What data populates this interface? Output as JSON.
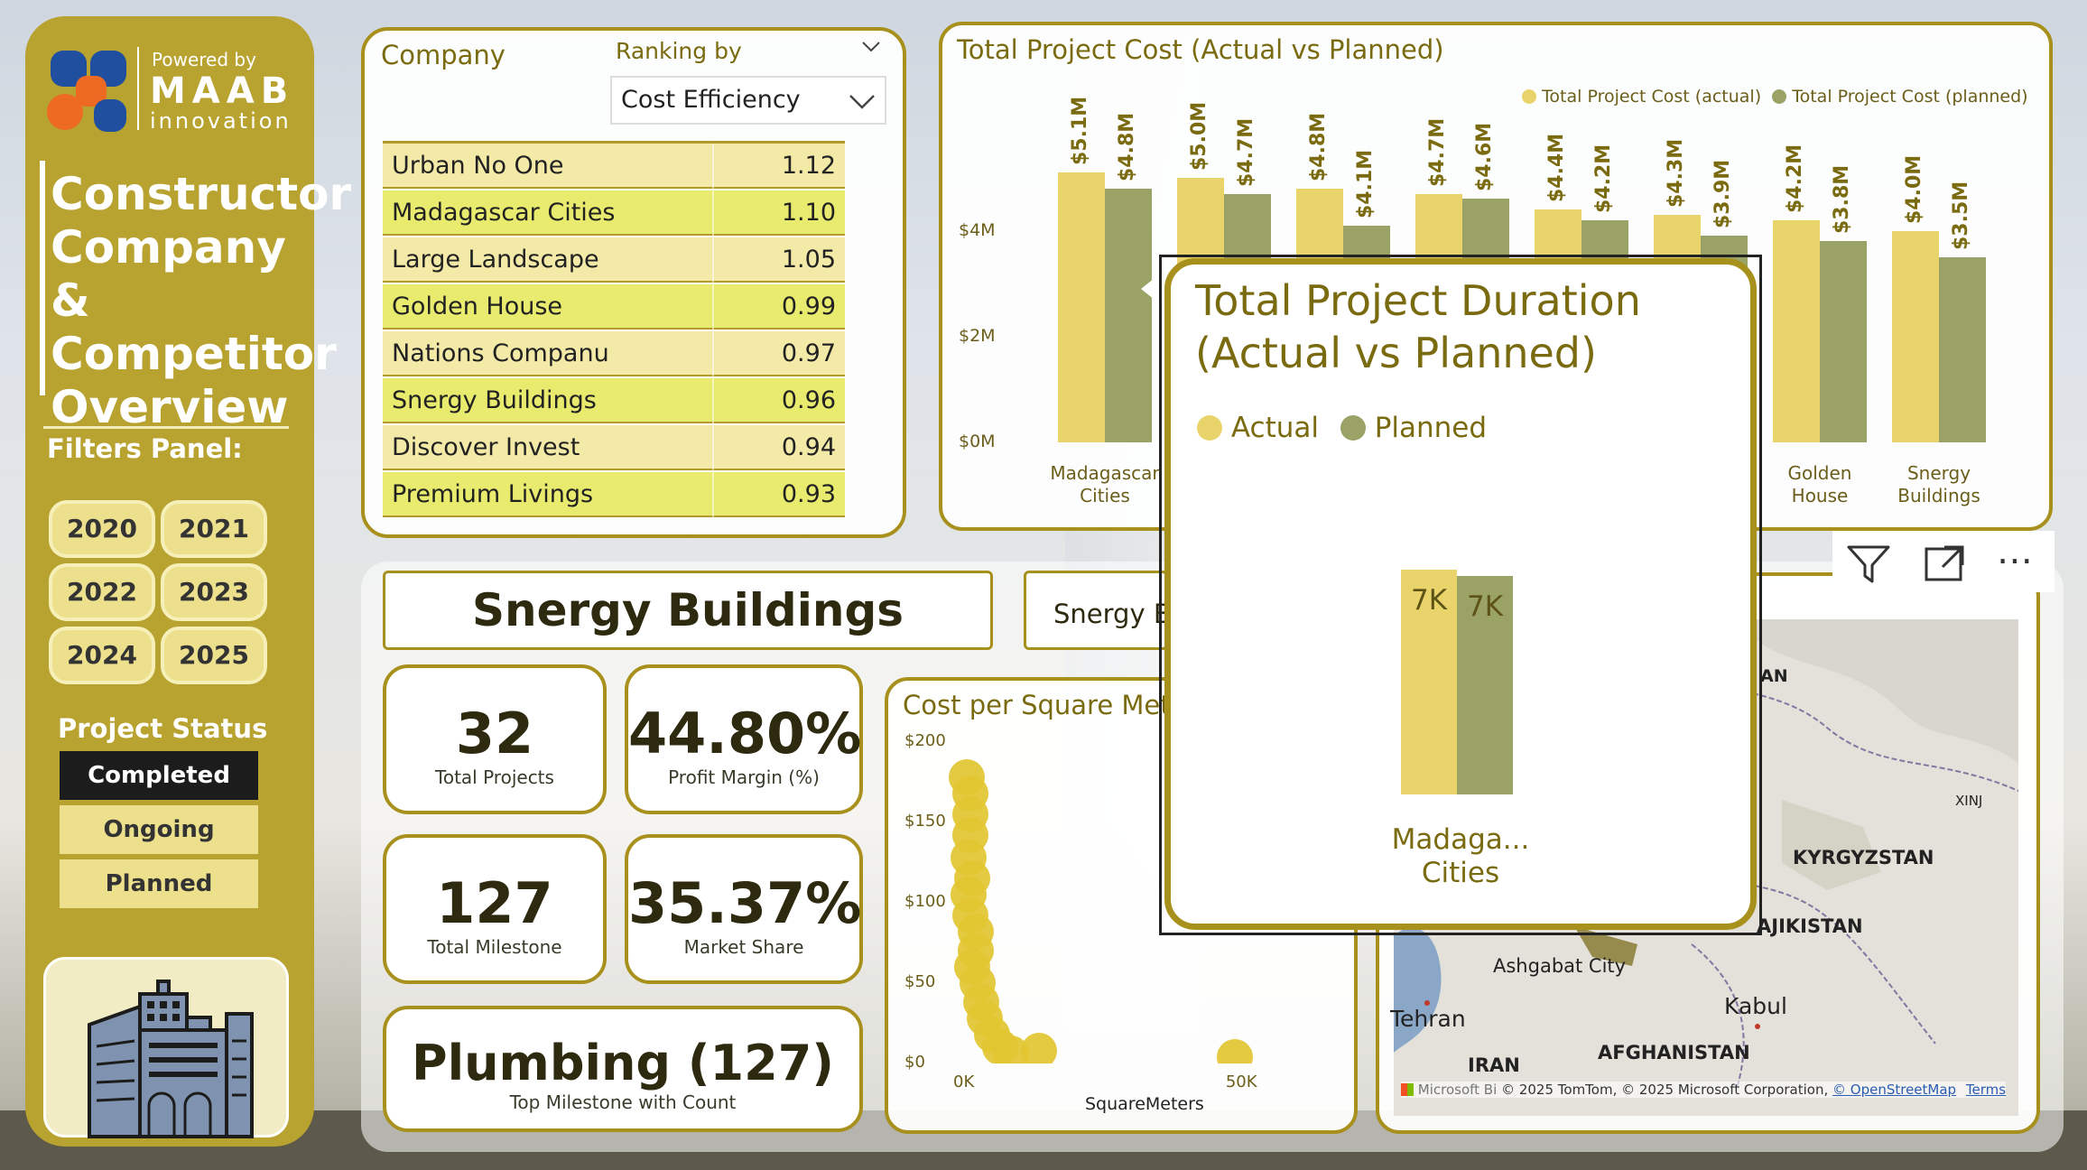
{
  "branding": {
    "powered_by": "Powered by",
    "brand_name": "MAAB",
    "brand_sub": "innovation"
  },
  "page_title": [
    "Constructor",
    "Company &",
    "Competitor",
    "Overview"
  ],
  "filters": {
    "label": "Filters Panel:",
    "years": [
      "2020",
      "2021",
      "2022",
      "2023",
      "2024",
      "2025"
    ],
    "status_label": "Project Status",
    "statuses": [
      {
        "label": "Completed",
        "selected": true
      },
      {
        "label": "Ongoing",
        "selected": false
      },
      {
        "label": "Planned",
        "selected": false
      }
    ]
  },
  "ranking": {
    "company_label": "Company",
    "ranking_by_label": "Ranking by",
    "ranking_by_value": "Cost Efficiency",
    "rows": [
      {
        "name": "Urban No One",
        "value": "1.12"
      },
      {
        "name": "Madagascar Cities",
        "value": "1.10"
      },
      {
        "name": "Large Landscape",
        "value": "1.05"
      },
      {
        "name": "Golden House",
        "value": "0.99"
      },
      {
        "name": "Nations Companu",
        "value": "0.97"
      },
      {
        "name": "Snergy Buildings",
        "value": "0.96"
      },
      {
        "name": "Discover Invest",
        "value": "0.94"
      },
      {
        "name": "Premium Livings",
        "value": "0.93"
      }
    ]
  },
  "selected_company": "Snergy Buildings",
  "company_dropdown_value": "Snergy B",
  "kpis": [
    {
      "value": "32",
      "label": "Total Projects"
    },
    {
      "value": "44.80%",
      "label": "Profit Margin (%)"
    },
    {
      "value": "127",
      "label": "Total Milestone"
    },
    {
      "value": "35.37%",
      "label": "Market Share"
    }
  ],
  "top_milestone": {
    "value": "Plumbing (127)",
    "label": "Top Milestone with Count"
  },
  "cost_chart": {
    "title": "Total Project Cost (Actual vs Planned)",
    "legend_actual": "Total Project Cost (actual)",
    "legend_planned": "Total Project Cost (planned)",
    "y_ticks": [
      "$4M",
      "$2M",
      "$0M"
    ],
    "visible_categories": [
      {
        "index": 0,
        "lines": [
          "Madagascar",
          "Cities"
        ]
      },
      {
        "index": 6,
        "lines": [
          "Golden",
          "House"
        ]
      },
      {
        "index": 7,
        "lines": [
          "Snergy",
          "Buildings"
        ]
      }
    ]
  },
  "duration_tooltip": {
    "title_line1": "Total Project Duration",
    "title_line2": "(Actual vs Planned)",
    "legend_actual": "Actual",
    "legend_planned": "Planned",
    "category_line1": "Madaga...",
    "category_line2": "Cities"
  },
  "scatter_chart": {
    "title": "Cost per Square Mete",
    "y_ticks": [
      "$200",
      "$150",
      "$100",
      "$50",
      "$0"
    ],
    "x_ticks": [
      "0K",
      "50K"
    ],
    "x_axis_label": "SquareMeters"
  },
  "map": {
    "labels": [
      "KYRGYZSTAN",
      "AJIKISTAN",
      "Ashgabat City",
      "Tehran",
      "Kabul",
      "IRAN",
      "AFGHANISTAN",
      "AN",
      "XINJ"
    ],
    "attribution_logo": "Microsoft Bi",
    "attribution": "© 2025 TomTom, © 2025 Microsoft Corporation, ",
    "osm": "© OpenStreetMap",
    "terms": "Terms"
  },
  "colors": {
    "accent": "#b8a230",
    "actual": "#e8d46a",
    "planned": "#9aa266",
    "highlight_row": "#e9eb6e",
    "pale_row": "#f3eaa8",
    "border": "#a8901c"
  },
  "icons": [
    "filter-icon",
    "focus-mode-icon",
    "more-options-icon",
    "chevron-down-icon",
    "building-icon"
  ],
  "chart_data": [
    {
      "type": "bar",
      "title": "Total Project Cost (Actual vs Planned)",
      "categories": [
        "Madagascar Cities",
        "",
        "",
        "",
        "",
        "",
        "Golden House",
        "Snergy Buildings"
      ],
      "series": [
        {
          "name": "Total Project Cost (actual)",
          "values": [
            5.1,
            5.0,
            4.8,
            4.7,
            4.4,
            4.3,
            4.2,
            4.0
          ],
          "labels": [
            "$5.1M",
            "$5.0M",
            "$4.8M",
            "$4.7M",
            "$4.4M",
            "$4.3M",
            "$4.2M",
            "$4.0M"
          ]
        },
        {
          "name": "Total Project Cost (planned)",
          "values": [
            4.8,
            4.7,
            4.1,
            4.6,
            4.2,
            3.9,
            3.8,
            3.5
          ],
          "labels": [
            "$4.8M",
            "$4.7M",
            "$4.1M",
            "$4.6M",
            "$4.2M",
            "$3.9M",
            "$3.8M",
            "$3.5M"
          ]
        }
      ],
      "ylim": [
        0,
        6.5
      ],
      "legend": "top-right"
    },
    {
      "type": "bar",
      "title": "Total Project Duration (Actual vs Planned)",
      "categories": [
        "Madagascar Cities"
      ],
      "series": [
        {
          "name": "Actual",
          "values": [
            7000
          ],
          "labels": [
            "7K"
          ]
        },
        {
          "name": "Planned",
          "values": [
            6800
          ],
          "labels": [
            "7K"
          ]
        }
      ],
      "ylim": [
        0,
        8000
      ]
    },
    {
      "type": "scatter",
      "title": "Cost per Square Mete",
      "xlabel": "SquareMeters",
      "xlim": [
        0,
        55000
      ],
      "ylim": [
        0,
        200
      ],
      "points": [
        {
          "x": 800,
          "y": 178
        },
        {
          "x": 1500,
          "y": 168
        },
        {
          "x": 1500,
          "y": 155
        },
        {
          "x": 1500,
          "y": 142
        },
        {
          "x": 1200,
          "y": 128
        },
        {
          "x": 1800,
          "y": 115
        },
        {
          "x": 1200,
          "y": 105
        },
        {
          "x": 1500,
          "y": 92
        },
        {
          "x": 2500,
          "y": 82
        },
        {
          "x": 2500,
          "y": 70
        },
        {
          "x": 1800,
          "y": 60
        },
        {
          "x": 2800,
          "y": 50
        },
        {
          "x": 3500,
          "y": 38
        },
        {
          "x": 4200,
          "y": 28
        },
        {
          "x": 5500,
          "y": 18
        },
        {
          "x": 7000,
          "y": 10
        },
        {
          "x": 9000,
          "y": 6
        },
        {
          "x": 14000,
          "y": 8
        },
        {
          "x": 50000,
          "y": 4
        }
      ]
    }
  ]
}
